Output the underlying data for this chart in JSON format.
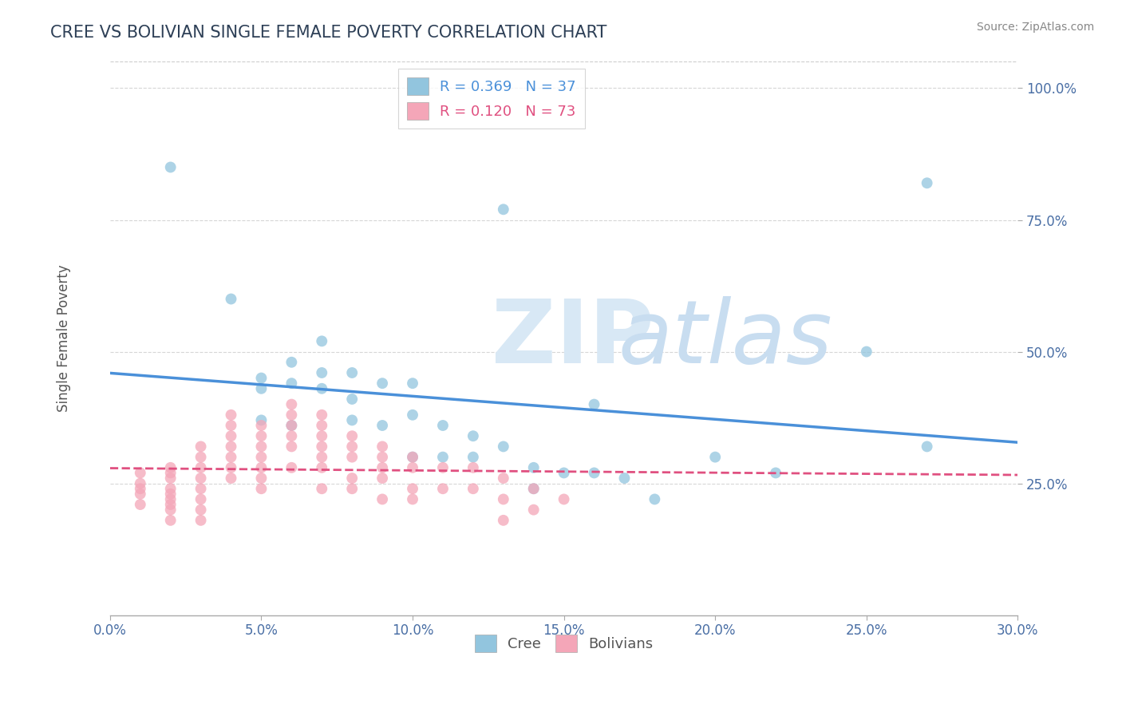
{
  "title": "CREE VS BOLIVIAN SINGLE FEMALE POVERTY CORRELATION CHART",
  "source": "Source: ZipAtlas.com",
  "ylabel": "Single Female Poverty",
  "xlim": [
    0.0,
    0.3
  ],
  "ylim": [
    0.0,
    1.05
  ],
  "xtick_labels": [
    "0.0%",
    "",
    "",
    "",
    "",
    "",
    "",
    "",
    "",
    "",
    "",
    "",
    "5.0%",
    "",
    "",
    "",
    "",
    "",
    "",
    "",
    "",
    "",
    "",
    "",
    "",
    "10.0%",
    "",
    "",
    "",
    "",
    "",
    "",
    "",
    "",
    "",
    "",
    "",
    "",
    "15.0%",
    "",
    "",
    "",
    "",
    "",
    "",
    "",
    "",
    "",
    "",
    "",
    "",
    "20.0%",
    "",
    "",
    "",
    "",
    "",
    "",
    "",
    "",
    "",
    "",
    "",
    "",
    "25.0%",
    "",
    "",
    "",
    "",
    "",
    "",
    "",
    "",
    "",
    "",
    "",
    "",
    "30.0%"
  ],
  "xtick_vals": [
    0.0,
    0.05,
    0.1,
    0.15,
    0.2,
    0.25,
    0.3
  ],
  "xtick_labels_short": [
    "0.0%",
    "5.0%",
    "10.0%",
    "15.0%",
    "20.0%",
    "25.0%",
    "30.0%"
  ],
  "ytick_labels": [
    "25.0%",
    "50.0%",
    "75.0%",
    "100.0%"
  ],
  "ytick_vals": [
    0.25,
    0.5,
    0.75,
    1.0
  ],
  "cree_color": "#92c5de",
  "bolivian_color": "#f4a6b8",
  "cree_R": 0.369,
  "cree_N": 37,
  "bolivian_R": 0.12,
  "bolivian_N": 73,
  "background_color": "#ffffff",
  "grid_color": "#cccccc",
  "title_color": "#2e4057",
  "cree_line_color": "#4a90d9",
  "bolivian_line_color": "#e05080",
  "cree_x": [
    0.02,
    0.04,
    0.05,
    0.05,
    0.05,
    0.06,
    0.06,
    0.06,
    0.07,
    0.07,
    0.07,
    0.08,
    0.08,
    0.08,
    0.09,
    0.09,
    0.1,
    0.1,
    0.1,
    0.11,
    0.11,
    0.12,
    0.12,
    0.13,
    0.14,
    0.14,
    0.15,
    0.16,
    0.17,
    0.18,
    0.2,
    0.22,
    0.25,
    0.27,
    0.27,
    0.13,
    0.16
  ],
  "cree_y": [
    0.85,
    0.6,
    0.45,
    0.43,
    0.37,
    0.48,
    0.44,
    0.36,
    0.52,
    0.46,
    0.43,
    0.46,
    0.41,
    0.37,
    0.44,
    0.36,
    0.44,
    0.38,
    0.3,
    0.36,
    0.3,
    0.34,
    0.3,
    0.32,
    0.28,
    0.24,
    0.27,
    0.27,
    0.26,
    0.22,
    0.3,
    0.27,
    0.5,
    0.82,
    0.32,
    0.77,
    0.4
  ],
  "bolivian_x": [
    0.01,
    0.01,
    0.01,
    0.01,
    0.01,
    0.02,
    0.02,
    0.02,
    0.02,
    0.02,
    0.02,
    0.02,
    0.02,
    0.02,
    0.03,
    0.03,
    0.03,
    0.03,
    0.03,
    0.03,
    0.03,
    0.03,
    0.04,
    0.04,
    0.04,
    0.04,
    0.04,
    0.04,
    0.04,
    0.05,
    0.05,
    0.05,
    0.05,
    0.05,
    0.05,
    0.05,
    0.06,
    0.06,
    0.06,
    0.06,
    0.06,
    0.06,
    0.07,
    0.07,
    0.07,
    0.07,
    0.07,
    0.07,
    0.07,
    0.08,
    0.08,
    0.08,
    0.08,
    0.08,
    0.09,
    0.09,
    0.09,
    0.09,
    0.09,
    0.1,
    0.1,
    0.1,
    0.1,
    0.11,
    0.11,
    0.12,
    0.12,
    0.13,
    0.13,
    0.13,
    0.14,
    0.14,
    0.15
  ],
  "bolivian_y": [
    0.27,
    0.25,
    0.24,
    0.23,
    0.21,
    0.28,
    0.27,
    0.26,
    0.24,
    0.23,
    0.22,
    0.21,
    0.2,
    0.18,
    0.32,
    0.3,
    0.28,
    0.26,
    0.24,
    0.22,
    0.2,
    0.18,
    0.38,
    0.36,
    0.34,
    0.32,
    0.3,
    0.28,
    0.26,
    0.36,
    0.34,
    0.32,
    0.3,
    0.28,
    0.26,
    0.24,
    0.4,
    0.38,
    0.36,
    0.34,
    0.32,
    0.28,
    0.38,
    0.36,
    0.34,
    0.32,
    0.3,
    0.28,
    0.24,
    0.34,
    0.32,
    0.3,
    0.26,
    0.24,
    0.32,
    0.3,
    0.28,
    0.26,
    0.22,
    0.3,
    0.28,
    0.24,
    0.22,
    0.28,
    0.24,
    0.28,
    0.24,
    0.26,
    0.22,
    0.18,
    0.24,
    0.2,
    0.22
  ]
}
